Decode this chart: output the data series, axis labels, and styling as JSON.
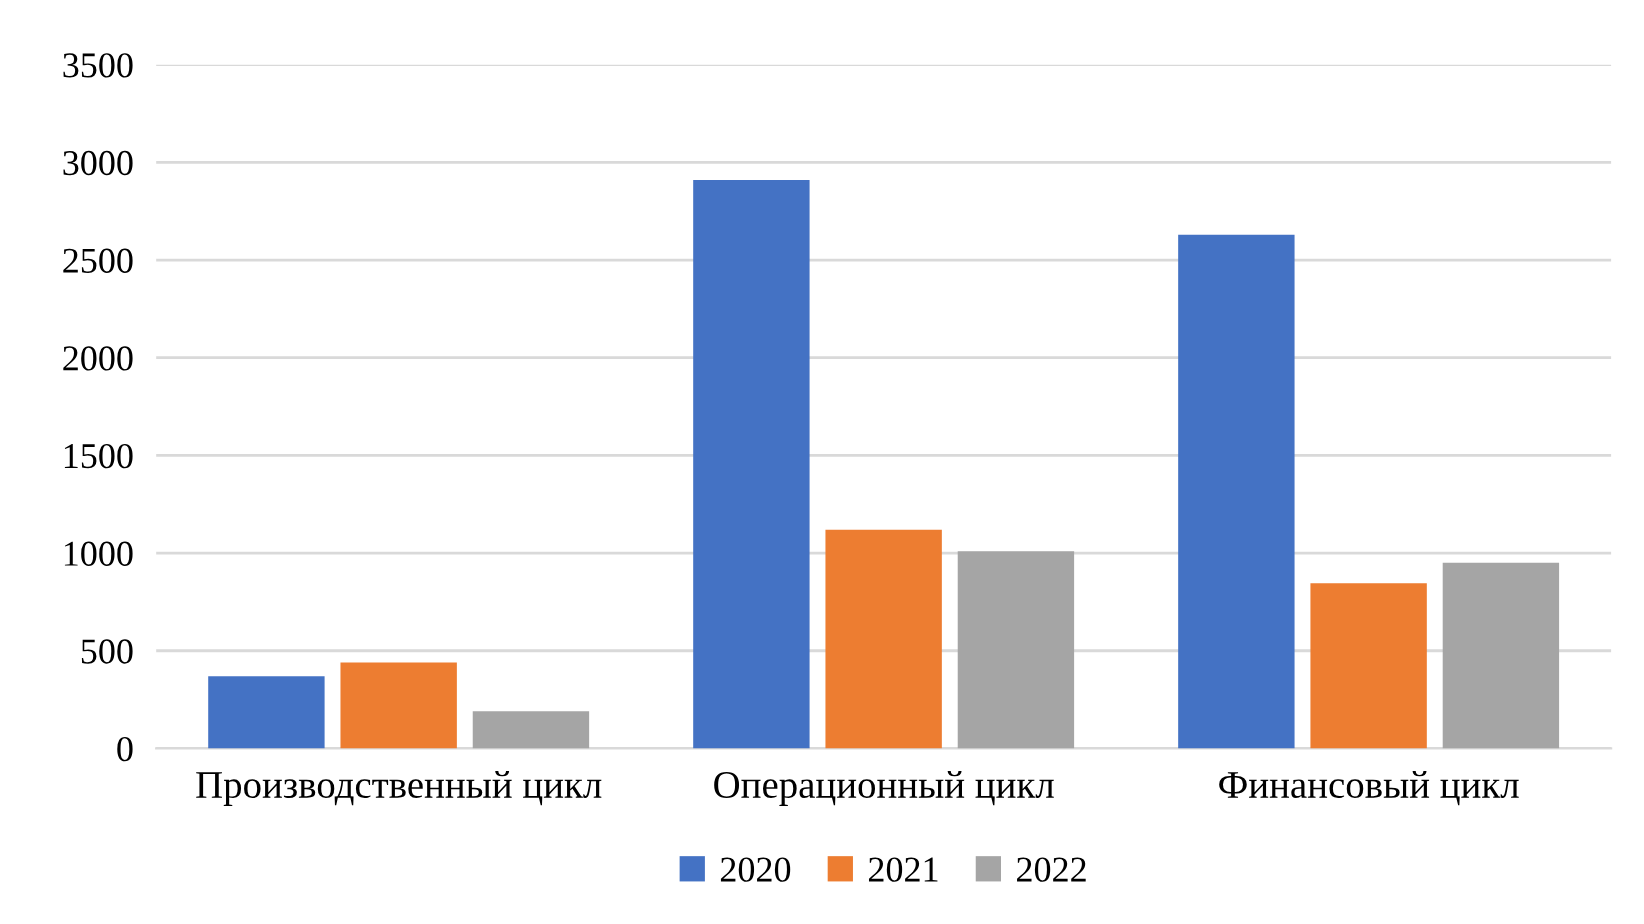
{
  "chart_data": {
    "type": "bar",
    "categories": [
      "Производственный цикл",
      "Операционный цикл",
      "Финансовый цикл"
    ],
    "series": [
      {
        "name": "2020",
        "color": "#4472c4",
        "values": [
          370,
          2910,
          2630
        ]
      },
      {
        "name": "2021",
        "color": "#ed7d31",
        "values": [
          440,
          1120,
          845
        ]
      },
      {
        "name": "2022",
        "color": "#a5a5a5",
        "values": [
          190,
          1010,
          950
        ]
      }
    ],
    "ylim": [
      0,
      3500
    ],
    "yticks": [
      0,
      500,
      1000,
      1500,
      2000,
      2500,
      3000,
      3500
    ],
    "grid": "y",
    "legend": "bottom"
  }
}
